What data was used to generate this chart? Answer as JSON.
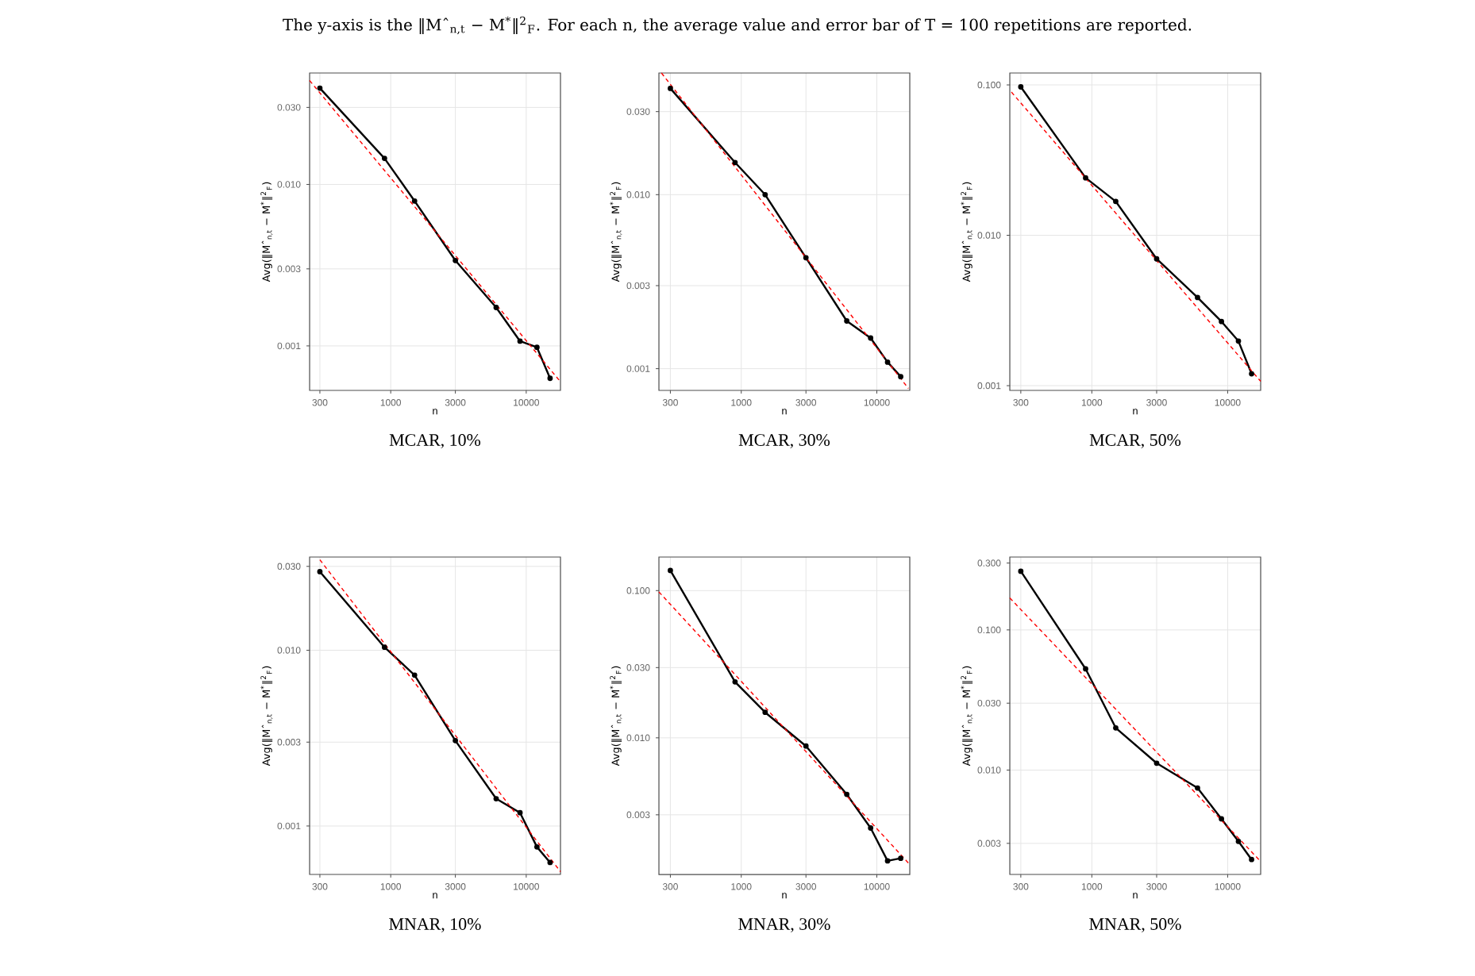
{
  "chart_data": [
    {
      "type": "line",
      "title": "MCAR, 10%",
      "xlabel": "n",
      "ylabel": "Avg(‖Mˆ$_{n,t}$ − M$^{*}$‖$^{2}$$_{F}$)",
      "annotations": [
        "The y-axis is the ‖Mˆ$_{n,t}$ − M$^{*}$‖$^{2}$$_{F}$. For each n, the average value and error bar of T = 100 repetitions are reported."
      ],
      "log": "xy",
      "grid": true,
      "xlim": [
        252,
        17900
      ],
      "ylim": [
        0.00053,
        0.049
      ],
      "xticks": [
        300,
        1000,
        3000,
        10000
      ],
      "yticks": [
        {
          "value": 0.03,
          "label": "0.030"
        },
        {
          "value": 0.01,
          "label": "0.010"
        },
        {
          "value": 0.003,
          "label": "0.003"
        },
        {
          "value": 0.001,
          "label": "0.001"
        }
      ],
      "x": [
        300,
        900,
        1500,
        3000,
        6000,
        9000,
        12000,
        15000
      ],
      "series": [
        {
          "color": "#000000",
          "marker": "circle",
          "line_style": "solid",
          "values": [
            0.0395,
            0.0145,
            0.0079,
            0.00338,
            0.00173,
            0.00107,
            0.00098,
            0.00063
          ]
        },
        {
          "color": "#ff0000",
          "marker": "none",
          "line_style": "dashed",
          "x": [
            252,
            17900
          ],
          "values": [
            0.044,
            0.0006
          ]
        }
      ]
    },
    {
      "type": "line",
      "title": "MCAR, 30%",
      "xlabel": "n",
      "ylabel": "Avg(‖Mˆ$_{n,t}$ − M$^{*}$‖$^{2}$$_{F}$)",
      "log": "xy",
      "grid": true,
      "xlim": [
        247,
        17500
      ],
      "ylim": [
        0.00075,
        0.05
      ],
      "xticks": [
        300,
        1000,
        3000,
        10000
      ],
      "yticks": [
        {
          "value": 0.03,
          "label": "0.030"
        },
        {
          "value": 0.01,
          "label": "0.010"
        },
        {
          "value": 0.003,
          "label": "0.003"
        },
        {
          "value": 0.001,
          "label": "0.001"
        }
      ],
      "x": [
        300,
        900,
        1500,
        3000,
        6000,
        9000,
        12000,
        15000
      ],
      "series": [
        {
          "color": "#000000",
          "marker": "circle",
          "line_style": "solid",
          "values": [
            0.0408,
            0.0153,
            0.01,
            0.00434,
            0.00188,
            0.0015,
            0.00109,
            0.0009
          ]
        },
        {
          "color": "#ff0000",
          "marker": "none",
          "line_style": "dashed",
          "x": [
            258,
            17100
          ],
          "values": [
            0.05,
            0.00077
          ]
        }
      ]
    },
    {
      "type": "line",
      "title": "MCAR, 50%",
      "xlabel": "n",
      "ylabel": "Avg(‖Mˆ$_{n,t}$ − M$^{*}$‖$^{2}$$_{F}$)",
      "log": "xy",
      "grid": true,
      "xlim": [
        249,
        17500
      ],
      "ylim": [
        0.00093,
        0.12
      ],
      "xticks": [
        300,
        1000,
        3000,
        10000
      ],
      "yticks": [
        {
          "value": 0.1,
          "label": "0.100"
        },
        {
          "value": 0.01,
          "label": "0.010"
        },
        {
          "value": 0.001,
          "label": "0.001"
        }
      ],
      "x": [
        300,
        900,
        1500,
        3000,
        6000,
        9000,
        12000,
        15000
      ],
      "series": [
        {
          "color": "#000000",
          "marker": "circle",
          "line_style": "solid",
          "values": [
            0.097,
            0.0241,
            0.0168,
            0.00697,
            0.00386,
            0.00267,
            0.00198,
            0.0012
          ]
        },
        {
          "color": "#ff0000",
          "marker": "none",
          "line_style": "dashed",
          "x": [
            256,
            17500
          ],
          "values": [
            0.0896,
            0.00107
          ]
        }
      ]
    },
    {
      "type": "line",
      "title": "MNAR, 10%",
      "xlabel": "n",
      "ylabel": "Avg(‖Mˆ$_{n,t}$ − M$^{*}$‖$^{2}$$_{F}$)",
      "log": "xy",
      "grid": true,
      "xlim": [
        252,
        17900
      ],
      "ylim": [
        0.00053,
        0.0339
      ],
      "xticks": [
        300,
        1000,
        3000,
        10000
      ],
      "yticks": [
        {
          "value": 0.03,
          "label": "0.030"
        },
        {
          "value": 0.01,
          "label": "0.010"
        },
        {
          "value": 0.003,
          "label": "0.003"
        },
        {
          "value": 0.001,
          "label": "0.001"
        }
      ],
      "x": [
        300,
        900,
        1500,
        3000,
        6000,
        9000,
        12000,
        15000
      ],
      "series": [
        {
          "color": "#000000",
          "marker": "circle",
          "line_style": "solid",
          "values": [
            0.028,
            0.0104,
            0.00722,
            0.00306,
            0.00143,
            0.00119,
            0.00076,
            0.00062
          ]
        },
        {
          "color": "#ff0000",
          "marker": "none",
          "line_style": "dashed",
          "x": [
            300,
            17900
          ],
          "values": [
            0.0327,
            0.00055
          ]
        }
      ]
    },
    {
      "type": "line",
      "title": "MNAR, 30%",
      "xlabel": "n",
      "ylabel": "Avg(‖Mˆ$_{n,t}$ − M$^{*}$‖$^{2}$$_{F}$)",
      "log": "xy",
      "grid": true,
      "xlim": [
        247,
        17500
      ],
      "ylim": [
        0.00118,
        0.169
      ],
      "xticks": [
        300,
        1000,
        3000,
        10000
      ],
      "yticks": [
        {
          "value": 0.1,
          "label": "0.100"
        },
        {
          "value": 0.03,
          "label": "0.030"
        },
        {
          "value": 0.01,
          "label": "0.010"
        },
        {
          "value": 0.003,
          "label": "0.003"
        }
      ],
      "x": [
        300,
        900,
        1500,
        3000,
        6000,
        9000,
        12000,
        15000
      ],
      "series": [
        {
          "color": "#000000",
          "marker": "circle",
          "line_style": "solid",
          "values": [
            0.137,
            0.024,
            0.0149,
            0.00879,
            0.00413,
            0.00244,
            0.00146,
            0.00152
          ]
        },
        {
          "color": "#ff0000",
          "marker": "none",
          "line_style": "dashed",
          "x": [
            247,
            17500
          ],
          "values": [
            0.098,
            0.00138
          ]
        }
      ]
    },
    {
      "type": "line",
      "title": "MNAR, 50%",
      "xlabel": "n",
      "ylabel": "Avg(‖Mˆ$_{n,t}$ − M$^{*}$‖$^{2}$$_{F}$)",
      "log": "xy",
      "grid": true,
      "xlim": [
        249,
        17500
      ],
      "ylim": [
        0.0018,
        0.331
      ],
      "xticks": [
        300,
        1000,
        3000,
        10000
      ],
      "yticks": [
        {
          "value": 0.3,
          "label": "0.300"
        },
        {
          "value": 0.1,
          "label": "0.100"
        },
        {
          "value": 0.03,
          "label": "0.030"
        },
        {
          "value": 0.01,
          "label": "0.010"
        },
        {
          "value": 0.003,
          "label": "0.003"
        }
      ],
      "x": [
        300,
        900,
        1500,
        3000,
        6000,
        9000,
        12000,
        15000
      ],
      "series": [
        {
          "color": "#000000",
          "marker": "circle",
          "line_style": "solid",
          "values": [
            0.262,
            0.0527,
            0.02,
            0.0112,
            0.00745,
            0.00449,
            0.0031,
            0.0023
          ]
        },
        {
          "color": "#ff0000",
          "marker": "none",
          "line_style": "dashed",
          "x": [
            249,
            17500
          ],
          "values": [
            0.169,
            0.00223
          ]
        }
      ]
    }
  ]
}
